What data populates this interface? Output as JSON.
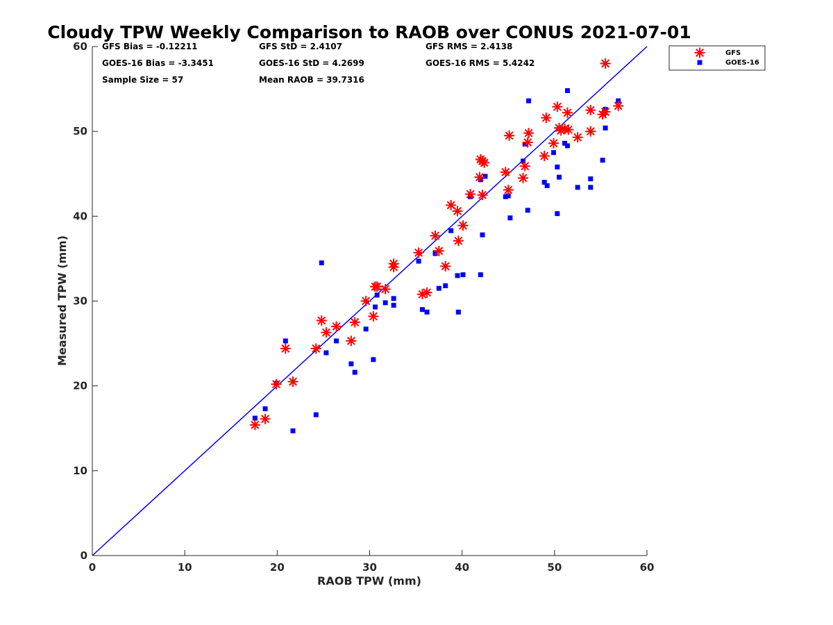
{
  "chart_data": {
    "type": "scatter",
    "title": "Cloudy TPW Weekly Comparison to RAOB over CONUS 2021-07-01",
    "xlabel": "RAOB TPW (mm)",
    "ylabel": "Measured TPW (mm)",
    "xlim": [
      0,
      60
    ],
    "ylim": [
      0,
      60
    ],
    "xticks": [
      0,
      10,
      20,
      30,
      40,
      50,
      60
    ],
    "yticks": [
      0,
      10,
      20,
      30,
      40,
      50,
      60
    ],
    "grid": false,
    "legend_position": "outside top-right",
    "reference_line": {
      "from": [
        0,
        0
      ],
      "to": [
        60,
        60
      ],
      "color": "#0000ff"
    },
    "stats": [
      [
        "GFS Bias = -0.12211",
        "GFS StD = 2.4107",
        "GFS RMS = 2.4138"
      ],
      [
        "GOES-16 Bias = -3.3451",
        "GOES-16 StD = 4.2699",
        "GOES-16 RMS = 5.4242"
      ],
      [
        "Sample Size = 57",
        "Mean RAOB = 39.7316",
        ""
      ]
    ],
    "series": [
      {
        "name": "GFS",
        "marker": "asterisk",
        "color": "#ff0000",
        "points": [
          [
            17.6,
            15.4
          ],
          [
            18.7,
            16.1
          ],
          [
            19.9,
            20.2
          ],
          [
            20.9,
            24.4
          ],
          [
            21.7,
            20.5
          ],
          [
            24.2,
            24.4
          ],
          [
            24.8,
            27.7
          ],
          [
            25.3,
            26.3
          ],
          [
            26.4,
            27.0
          ],
          [
            28.0,
            25.3
          ],
          [
            28.4,
            27.5
          ],
          [
            29.6,
            30.0
          ],
          [
            30.4,
            28.2
          ],
          [
            30.6,
            31.7
          ],
          [
            30.8,
            31.7
          ],
          [
            31.7,
            31.4
          ],
          [
            32.6,
            34.0
          ],
          [
            32.6,
            34.4
          ],
          [
            35.3,
            35.7
          ],
          [
            35.7,
            30.8
          ],
          [
            36.2,
            31.0
          ],
          [
            37.1,
            37.7
          ],
          [
            37.5,
            35.9
          ],
          [
            38.2,
            34.1
          ],
          [
            38.8,
            41.3
          ],
          [
            39.5,
            40.6
          ],
          [
            39.6,
            37.1
          ],
          [
            40.1,
            38.9
          ],
          [
            40.9,
            42.6
          ],
          [
            41.9,
            44.6
          ],
          [
            42.0,
            46.7
          ],
          [
            42.2,
            46.5
          ],
          [
            42.2,
            42.5
          ],
          [
            42.4,
            46.3
          ],
          [
            44.7,
            45.2
          ],
          [
            45.0,
            43.1
          ],
          [
            45.1,
            49.5
          ],
          [
            46.6,
            44.5
          ],
          [
            46.8,
            45.9
          ],
          [
            47.1,
            48.7
          ],
          [
            47.2,
            49.8
          ],
          [
            48.9,
            47.1
          ],
          [
            49.1,
            51.6
          ],
          [
            49.9,
            48.6
          ],
          [
            50.3,
            52.9
          ],
          [
            50.5,
            50.4
          ],
          [
            50.7,
            50.1
          ],
          [
            51.1,
            50.3
          ],
          [
            51.5,
            50.2
          ],
          [
            51.4,
            52.2
          ],
          [
            52.5,
            49.3
          ],
          [
            53.9,
            50.0
          ],
          [
            53.9,
            52.5
          ],
          [
            55.2,
            52.0
          ],
          [
            55.5,
            58.0
          ],
          [
            56.9,
            53.0
          ],
          [
            55.5,
            52.3
          ]
        ]
      },
      {
        "name": "GOES-16",
        "marker": "square",
        "color": "#0000ff",
        "points": [
          [
            17.6,
            16.2
          ],
          [
            18.7,
            17.3
          ],
          [
            19.9,
            20.3
          ],
          [
            20.9,
            25.3
          ],
          [
            21.7,
            14.7
          ],
          [
            24.2,
            16.6
          ],
          [
            24.8,
            34.5
          ],
          [
            25.3,
            23.9
          ],
          [
            26.4,
            25.3
          ],
          [
            28.0,
            22.6
          ],
          [
            28.4,
            21.6
          ],
          [
            29.6,
            26.7
          ],
          [
            30.4,
            23.1
          ],
          [
            30.6,
            29.3
          ],
          [
            30.8,
            30.7
          ],
          [
            31.7,
            29.8
          ],
          [
            32.6,
            30.3
          ],
          [
            32.6,
            29.5
          ],
          [
            35.3,
            34.7
          ],
          [
            35.7,
            29.0
          ],
          [
            36.2,
            28.7
          ],
          [
            37.1,
            35.7
          ],
          [
            37.5,
            31.5
          ],
          [
            38.2,
            31.8
          ],
          [
            38.8,
            38.3
          ],
          [
            39.5,
            33.0
          ],
          [
            39.6,
            28.7
          ],
          [
            40.1,
            33.1
          ],
          [
            40.9,
            42.3
          ],
          [
            42.0,
            33.1
          ],
          [
            42.0,
            44.3
          ],
          [
            42.2,
            37.8
          ],
          [
            42.5,
            44.7
          ],
          [
            44.7,
            42.3
          ],
          [
            45.0,
            42.4
          ],
          [
            45.2,
            39.8
          ],
          [
            46.6,
            46.5
          ],
          [
            46.8,
            48.5
          ],
          [
            47.1,
            40.7
          ],
          [
            47.2,
            53.6
          ],
          [
            48.9,
            44.0
          ],
          [
            49.2,
            43.6
          ],
          [
            49.9,
            47.5
          ],
          [
            50.3,
            40.3
          ],
          [
            50.3,
            45.8
          ],
          [
            50.5,
            44.6
          ],
          [
            51.1,
            48.6
          ],
          [
            51.4,
            48.3
          ],
          [
            51.4,
            54.8
          ],
          [
            52.5,
            43.4
          ],
          [
            53.9,
            43.4
          ],
          [
            53.9,
            44.4
          ],
          [
            55.2,
            46.6
          ],
          [
            55.5,
            50.4
          ],
          [
            55.5,
            52.6
          ],
          [
            56.9,
            53.6
          ],
          [
            37.1,
            35.6
          ]
        ]
      }
    ]
  }
}
